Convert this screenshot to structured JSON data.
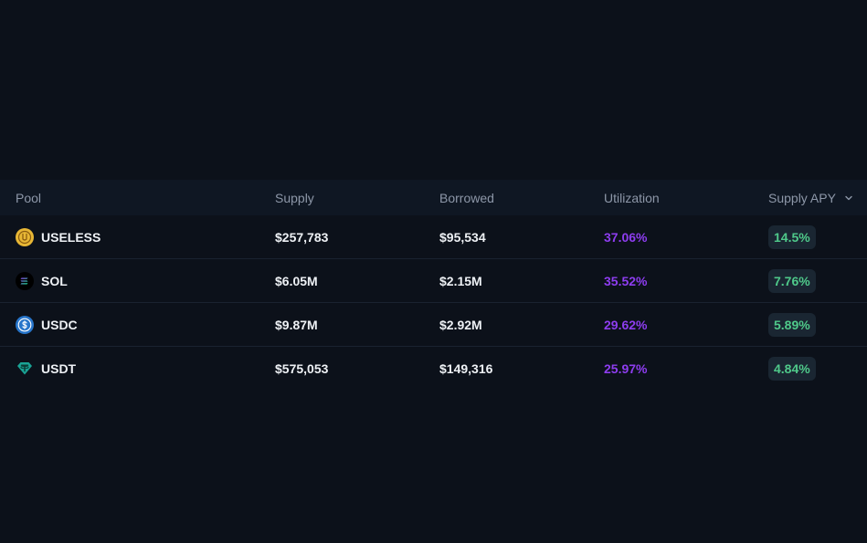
{
  "header": {
    "pool": "Pool",
    "supply": "Supply",
    "borrowed": "Borrowed",
    "utilization": "Utilization",
    "supply_apy": "Supply APY",
    "sort_icon": "chevron-down-icon"
  },
  "colors": {
    "utilization": "#8e3df0",
    "apy_text": "#4fc98a",
    "apy_badge_bg": "#1a2632"
  },
  "rows": [
    {
      "name": "USELESS",
      "icon": "useless-token-icon",
      "supply": "$257,783",
      "borrowed": "$95,534",
      "utilization": "37.06%",
      "apy": "14.5%"
    },
    {
      "name": "SOL",
      "icon": "sol-token-icon",
      "supply": "$6.05M",
      "borrowed": "$2.15M",
      "utilization": "35.52%",
      "apy": "7.76%"
    },
    {
      "name": "USDC",
      "icon": "usdc-token-icon",
      "supply": "$9.87M",
      "borrowed": "$2.92M",
      "utilization": "29.62%",
      "apy": "5.89%"
    },
    {
      "name": "USDT",
      "icon": "usdt-token-icon",
      "supply": "$575,053",
      "borrowed": "$149,316",
      "utilization": "25.97%",
      "apy": "4.84%"
    }
  ]
}
